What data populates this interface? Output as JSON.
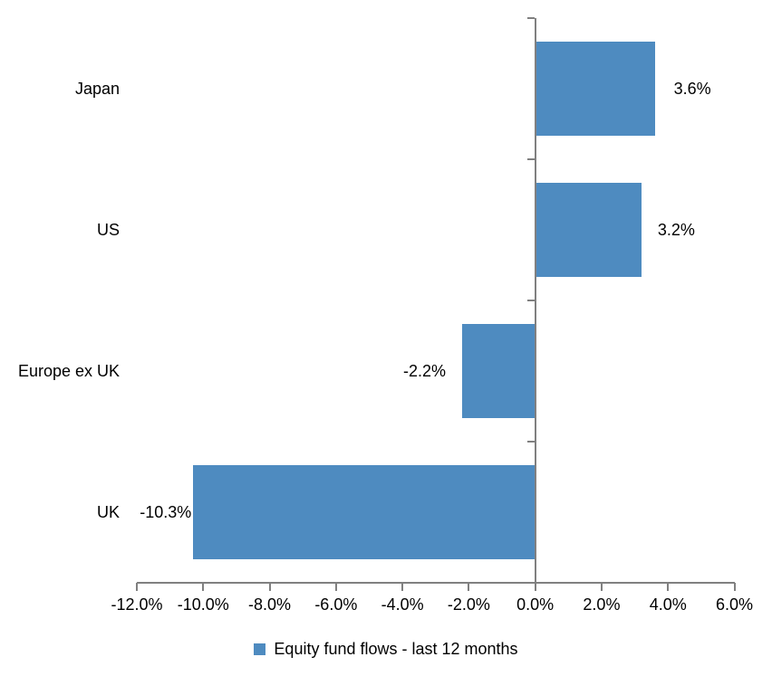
{
  "chart_data": {
    "type": "bar",
    "orientation": "horizontal",
    "title": "",
    "categories": [
      "Japan",
      "US",
      "Europe ex UK",
      "UK"
    ],
    "series": [
      {
        "name": "Equity fund flows - last 12 months",
        "values": [
          3.6,
          3.2,
          -2.2,
          -10.3
        ],
        "value_labels": [
          "3.6%",
          "3.2%",
          "-2.2%",
          "-10.3%"
        ]
      }
    ],
    "xlim": [
      -12,
      6
    ],
    "x_ticks": [
      -12,
      -10,
      -8,
      -6,
      -4,
      -2,
      0,
      2,
      4,
      6
    ],
    "x_tick_labels": [
      "-12.0%",
      "-10.0%",
      "-8.0%",
      "-6.0%",
      "-4.0%",
      "-2.0%",
      "0.0%",
      "2.0%",
      "4.0%",
      "6.0%"
    ],
    "grid": false,
    "legend": {
      "position": "bottom",
      "entries": [
        {
          "label": "Equity fund flows - last 12 months",
          "color": "#4E8BC0"
        }
      ]
    },
    "colors": {
      "bar": "#4E8BC0",
      "axis": "#808080",
      "text": "#000000",
      "background": "#FFFFFF"
    }
  }
}
